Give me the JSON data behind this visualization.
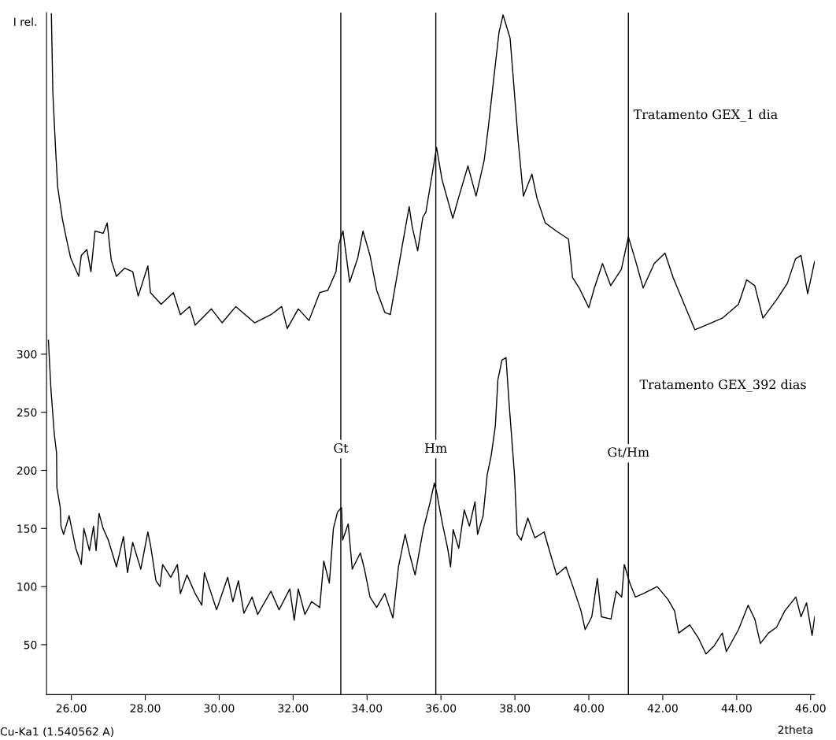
{
  "chart_data": {
    "type": "line",
    "ylabel": "I rel.",
    "xlabel": "2theta",
    "annotations": [
      "Cu-Ka1 (1.540562 A)",
      "Tratamento GEX_1 dia",
      "Tratamento GEX_392 dias"
    ],
    "xlim": [
      25.33,
      46.11
    ],
    "ylim": [
      7,
      594
    ],
    "xticks": [
      {
        "value": 26,
        "label": "26.00"
      },
      {
        "value": 28,
        "label": "28.00"
      },
      {
        "value": 30,
        "label": "30.00"
      },
      {
        "value": 32,
        "label": "32.00"
      },
      {
        "value": 34,
        "label": "34.00"
      },
      {
        "value": 36,
        "label": "36.00"
      },
      {
        "value": 38,
        "label": "38.00"
      },
      {
        "value": 40,
        "label": "40.00"
      },
      {
        "value": 42,
        "label": "42.00"
      },
      {
        "value": 44,
        "label": "44.00"
      },
      {
        "value": 46,
        "label": "46.00"
      }
    ],
    "yticks": [
      50,
      100,
      150,
      200,
      250,
      300
    ],
    "grid": false,
    "legend": false,
    "marker": "none",
    "line_style": "solid",
    "ref_lines": [
      {
        "axis": "x",
        "value": 33.29,
        "label": "Gt",
        "color": "#000000"
      },
      {
        "axis": "x",
        "value": 35.86,
        "label": "Hm",
        "color": "#000000"
      },
      {
        "axis": "x",
        "value": 41.07,
        "label": "Gt/Hm",
        "color": "#000000"
      }
    ],
    "series": [
      {
        "color": "#000000",
        "x": [
          25.46,
          25.5,
          25.57,
          25.63,
          25.76,
          25.87,
          25.98,
          26.2,
          26.27,
          26.42,
          26.53,
          26.64,
          26.86,
          26.97,
          27.08,
          27.22,
          27.44,
          27.66,
          27.81,
          28.07,
          28.14,
          28.43,
          28.76,
          28.95,
          29.2,
          29.35,
          29.79,
          30.08,
          30.45,
          30.96,
          31.4,
          31.69,
          31.84,
          32.14,
          32.43,
          32.72,
          32.94,
          33.16,
          33.24,
          33.35,
          33.53,
          33.75,
          33.89,
          34.08,
          34.26,
          34.48,
          34.63,
          34.77,
          35.0,
          35.14,
          35.22,
          35.37,
          35.51,
          35.59,
          35.81,
          35.88,
          36.03,
          36.32,
          36.47,
          36.73,
          36.95,
          37.17,
          37.28,
          37.42,
          37.57,
          37.68,
          37.87,
          37.94,
          38.09,
          38.23,
          38.46,
          38.6,
          38.82,
          39.12,
          39.45,
          39.56,
          39.74,
          40.0,
          40.15,
          40.37,
          40.59,
          40.88,
          41.07,
          41.25,
          41.47,
          41.77,
          42.06,
          42.28,
          42.58,
          42.87,
          43.24,
          43.61,
          44.05,
          44.27,
          44.49,
          44.71,
          45.08,
          45.37,
          45.59,
          45.74,
          45.92,
          46.11
        ],
        "values": [
          593,
          525,
          479,
          444,
          416,
          399,
          383,
          367,
          385,
          390,
          371,
          406,
          404,
          413,
          381,
          367,
          374,
          371,
          350,
          376,
          353,
          343,
          353,
          334,
          341,
          325,
          339,
          327,
          341,
          327,
          334,
          341,
          322,
          339,
          329,
          353,
          355,
          371,
          395,
          406,
          362,
          383,
          406,
          385,
          355,
          336,
          334,
          360,
          402,
          427,
          410,
          389,
          418,
          422,
          464,
          478,
          450,
          417,
          434,
          462,
          436,
          467,
          495,
          535,
          577,
          592,
          572,
          544,
          483,
          436,
          455,
          434,
          413,
          406,
          399,
          366,
          357,
          340,
          357,
          378,
          359,
          373,
          401,
          382,
          357,
          378,
          387,
          366,
          343,
          321,
          326,
          331,
          343,
          364,
          359,
          331,
          347,
          361,
          382,
          385,
          352,
          380
        ]
      },
      {
        "color": "#000000",
        "x": [
          25.38,
          25.45,
          25.54,
          25.6,
          25.61,
          25.7,
          25.72,
          25.79,
          25.94,
          26.12,
          26.27,
          26.34,
          26.49,
          26.6,
          26.67,
          26.75,
          26.86,
          27.0,
          27.22,
          27.41,
          27.52,
          27.66,
          27.88,
          28.07,
          28.14,
          28.29,
          28.4,
          28.47,
          28.69,
          28.87,
          28.95,
          29.13,
          29.35,
          29.53,
          29.6,
          29.93,
          30.23,
          30.37,
          30.52,
          30.67,
          30.89,
          31.04,
          31.4,
          31.62,
          31.91,
          32.03,
          32.14,
          32.32,
          32.5,
          32.72,
          32.83,
          32.98,
          33.09,
          33.2,
          33.31,
          33.34,
          33.49,
          33.6,
          33.82,
          33.93,
          34.08,
          34.26,
          34.48,
          34.7,
          34.85,
          35.03,
          35.15,
          35.3,
          35.52,
          35.71,
          35.82,
          35.89,
          36.04,
          36.18,
          36.26,
          36.33,
          36.48,
          36.63,
          36.77,
          36.92,
          36.99,
          37.14,
          37.25,
          37.36,
          37.47,
          37.54,
          37.65,
          37.76,
          37.84,
          37.99,
          38.06,
          38.17,
          38.35,
          38.54,
          38.79,
          38.98,
          39.13,
          39.38,
          39.57,
          39.79,
          39.9,
          40.08,
          40.23,
          40.34,
          40.6,
          40.74,
          40.89,
          40.96,
          41.11,
          41.26,
          41.48,
          41.85,
          42.14,
          42.32,
          42.43,
          42.73,
          42.96,
          43.17,
          43.39,
          43.61,
          43.72,
          44.05,
          44.31,
          44.49,
          44.64,
          44.86,
          45.08,
          45.3,
          45.6,
          45.74,
          45.89,
          46.04,
          46.11
        ],
        "values": [
          312,
          269,
          231,
          215,
          185,
          168,
          152,
          145,
          161,
          133,
          119,
          150,
          131,
          152,
          131,
          163,
          150,
          140,
          117,
          143,
          112,
          138,
          115,
          147,
          136,
          105,
          100,
          119,
          108,
          119,
          94,
          110,
          94,
          84,
          112,
          80,
          108,
          87,
          105,
          77,
          91,
          76,
          96,
          80,
          98,
          71,
          98,
          76,
          87,
          82,
          122,
          103,
          150,
          164,
          168,
          140,
          154,
          115,
          129,
          115,
          91,
          82,
          94,
          73,
          117,
          145,
          128,
          110,
          149,
          173,
          189,
          180,
          154,
          133,
          117,
          149,
          133,
          166,
          152,
          173,
          145,
          161,
          196,
          213,
          238,
          278,
          295,
          297,
          259,
          196,
          145,
          140,
          159,
          142,
          147,
          126,
          110,
          117,
          100,
          79,
          63,
          74,
          107,
          74,
          72,
          96,
          91,
          119,
          103,
          91,
          94,
          100,
          89,
          79,
          60,
          67,
          56,
          42,
          49,
          60,
          44,
          63,
          84,
          72,
          51,
          60,
          65,
          79,
          91,
          74,
          86,
          58,
          74
        ]
      }
    ]
  }
}
